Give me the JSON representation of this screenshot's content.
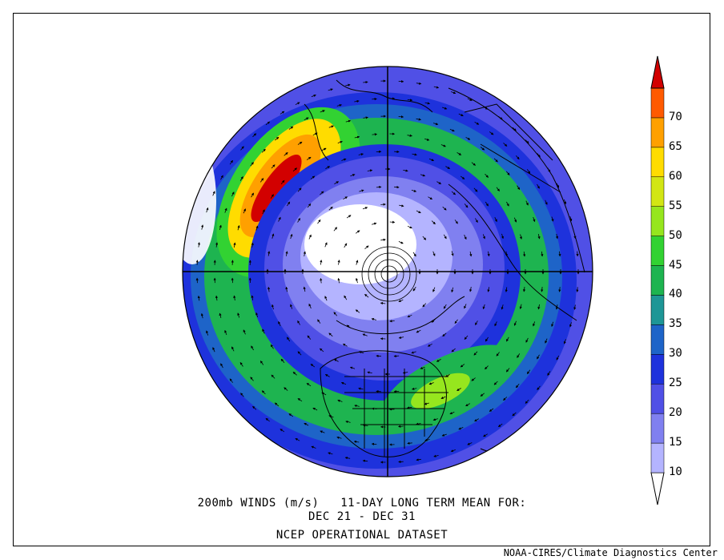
{
  "title": {
    "line1": "200mb WINDS (m/s)   11-DAY LONG TERM MEAN FOR:",
    "line2": "DEC 21 - DEC 31",
    "line3": "NCEP OPERATIONAL DATASET"
  },
  "credit": "NOAA-CIRES/Climate Diagnostics Center",
  "colorbar": {
    "levels": [
      "10",
      "15",
      "20",
      "25",
      "30",
      "35",
      "40",
      "45",
      "50",
      "55",
      "60",
      "65",
      "70"
    ],
    "colors": [
      "#ffffff",
      "#b4b4ff",
      "#8080f0",
      "#5050e6",
      "#1e32dc",
      "#1e64c8",
      "#1e9696",
      "#1eb450",
      "#32d232",
      "#96e61e",
      "#d2e614",
      "#ffdc00",
      "#ffa000",
      "#ff5a00",
      "#d20000"
    ]
  }
}
